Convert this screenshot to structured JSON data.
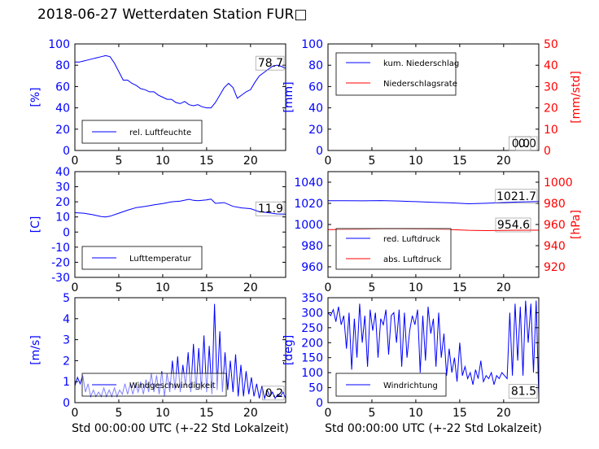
{
  "page": {
    "title": "2018-06-27 Wetterdaten Station FUR□"
  },
  "colors": {
    "left_axis": "#0000ff",
    "right_axis": "#ff0000",
    "series_blue": "#0000ff",
    "series_red": "#ff0000",
    "frame": "#000000",
    "legend_border": "#000000"
  },
  "chart_data": [
    {
      "id": "humidity",
      "type": "line",
      "xlabel": "",
      "ylabel": "[%]",
      "xlim": [
        0,
        24
      ],
      "xticks": [
        0,
        5,
        10,
        15,
        20
      ],
      "ylim": [
        0,
        100
      ],
      "yticks": [
        0,
        20,
        40,
        60,
        80,
        100
      ],
      "legend": "bottom-left",
      "grid": false,
      "series": [
        {
          "name": "rel. Luftfeuchte",
          "axis": "left",
          "color": "#0000ff",
          "x": [
            0,
            0.5,
            1,
            1.5,
            2,
            2.5,
            3,
            3.5,
            4,
            4.5,
            5,
            5.5,
            6,
            6.5,
            7,
            7.5,
            8,
            8.5,
            9,
            9.5,
            10,
            10.5,
            11,
            11.5,
            12,
            12.5,
            13,
            13.5,
            14,
            14.5,
            15,
            15.5,
            16,
            16.5,
            17,
            17.5,
            18,
            18.5,
            19,
            19.5,
            20,
            20.5,
            21,
            21.5,
            22,
            22.5,
            23,
            23.5,
            24
          ],
          "values": [
            83,
            83,
            84,
            85,
            86,
            87,
            88,
            89,
            88,
            82,
            74,
            66,
            66,
            63,
            61,
            58,
            57,
            55,
            55,
            52,
            50,
            48,
            48,
            45,
            44,
            46,
            43,
            42,
            43,
            41,
            40,
            40,
            45,
            52,
            59,
            63,
            59,
            49,
            52,
            55,
            57,
            64,
            70,
            73,
            76,
            79,
            80,
            79,
            77
          ]
        }
      ],
      "annotation": "78.7"
    },
    {
      "id": "precipitation",
      "type": "line",
      "xlabel": "",
      "ylabel": "[mm]",
      "ylabel_right": "[mm/std]",
      "xlim": [
        0,
        24
      ],
      "xticks": [
        0,
        5,
        10,
        15,
        20
      ],
      "ylim": [
        0,
        100
      ],
      "yticks": [
        0,
        20,
        40,
        60,
        80,
        100
      ],
      "ylim_right": [
        0,
        50
      ],
      "yticks_right": [
        0,
        10,
        20,
        30,
        40,
        50
      ],
      "legend": "top-left",
      "grid": false,
      "series": [
        {
          "name": "kum. Niederschlag",
          "axis": "left",
          "color": "#0000ff",
          "x": [
            0,
            24
          ],
          "values": [
            0,
            0
          ]
        },
        {
          "name": "Niederschlagsrate",
          "axis": "right",
          "color": "#ff0000",
          "x": [
            0,
            24
          ],
          "values": [
            0,
            0
          ]
        }
      ],
      "annotation": "0.0",
      "annotation_right": "0.0"
    },
    {
      "id": "temperature",
      "type": "line",
      "xlabel": "",
      "ylabel": "[C]",
      "xlim": [
        0,
        24
      ],
      "xticks": [
        0,
        5,
        10,
        15,
        20
      ],
      "ylim": [
        -30,
        40
      ],
      "yticks": [
        -30,
        -20,
        -10,
        0,
        10,
        20,
        30,
        40
      ],
      "legend": "bottom-left",
      "grid": false,
      "series": [
        {
          "name": "Lufttemperatur",
          "axis": "left",
          "color": "#0000ff",
          "x": [
            0,
            1,
            2,
            3,
            3.5,
            4,
            5,
            6,
            7,
            8,
            9,
            10,
            11,
            12,
            13,
            13.5,
            14,
            15,
            15.5,
            16,
            17,
            18,
            19,
            20,
            21,
            22,
            23,
            24
          ],
          "values": [
            12.8,
            12.5,
            11.5,
            10.3,
            10.0,
            10.5,
            12.5,
            14.5,
            16.2,
            17.0,
            18.0,
            18.9,
            20.0,
            20.5,
            21.7,
            21.0,
            20.8,
            21.3,
            21.8,
            19.0,
            19.5,
            17.0,
            16.0,
            15.5,
            13.5,
            12.8,
            12.0,
            11.9
          ]
        }
      ],
      "annotation": "11.9"
    },
    {
      "id": "pressure",
      "type": "line",
      "xlabel": "",
      "ylabel": "",
      "ylabel_right": "[hPa]",
      "xlim": [
        0,
        24
      ],
      "xticks": [
        0,
        5,
        10,
        15,
        20
      ],
      "ylim": [
        950,
        1050
      ],
      "yticks": [
        960,
        980,
        1000,
        1020,
        1040
      ],
      "ylim_right": [
        910,
        1010
      ],
      "yticks_right": [
        920,
        940,
        960,
        980,
        1000
      ],
      "legend": "bottom-left",
      "grid": false,
      "series": [
        {
          "name": "red. Luftdruck",
          "axis": "left",
          "color": "#0000ff",
          "x": [
            0,
            2,
            4,
            6,
            8,
            10,
            12,
            14,
            16,
            18,
            20,
            22,
            24
          ],
          "values": [
            1022.5,
            1022.5,
            1022.4,
            1022.6,
            1022.2,
            1021.6,
            1021.0,
            1020.5,
            1019.6,
            1020.1,
            1020.8,
            1021.4,
            1021.7
          ]
        },
        {
          "name": "abs. Luftdruck",
          "axis": "right",
          "color": "#ff0000",
          "x": [
            0,
            2,
            4,
            6,
            8,
            10,
            12,
            14,
            16,
            18,
            20,
            22,
            24
          ],
          "values": [
            955.2,
            955.3,
            955.5,
            955.9,
            956.0,
            955.8,
            955.6,
            955.2,
            954.5,
            954.2,
            954.4,
            954.6,
            954.6
          ]
        }
      ],
      "annotation": "1021.7",
      "annotation_right": "954.6"
    },
    {
      "id": "wind-speed",
      "type": "line",
      "xlabel": "Std 00:00:00 UTC (+-22 Std Lokalzeit)",
      "ylabel": "[m/s]",
      "xlim": [
        0,
        24
      ],
      "xticks": [
        0,
        5,
        10,
        15,
        20
      ],
      "ylim": [
        0,
        5
      ],
      "yticks": [
        0,
        1,
        2,
        3,
        4,
        5
      ],
      "legend": "bottom-left",
      "grid": false,
      "series": [
        {
          "name": "Windgeschwindigkeit",
          "axis": "left",
          "color": "#0000ff",
          "x": [
            0,
            0.3,
            0.6,
            0.9,
            1.2,
            1.5,
            1.8,
            2.1,
            2.4,
            2.7,
            3.0,
            3.3,
            3.6,
            3.9,
            4.2,
            4.5,
            4.8,
            5.1,
            5.4,
            5.7,
            6.0,
            6.3,
            6.6,
            6.9,
            7.2,
            7.5,
            7.8,
            8.1,
            8.4,
            8.7,
            9.0,
            9.3,
            9.6,
            9.9,
            10.2,
            10.5,
            10.8,
            11.1,
            11.4,
            11.7,
            12.0,
            12.3,
            12.6,
            12.9,
            13.2,
            13.5,
            13.8,
            14.1,
            14.4,
            14.7,
            15.0,
            15.3,
            15.6,
            15.9,
            16.2,
            16.5,
            16.8,
            17.1,
            17.4,
            17.7,
            18.0,
            18.3,
            18.6,
            18.9,
            19.2,
            19.5,
            19.8,
            20.1,
            20.4,
            20.7,
            21.0,
            21.3,
            21.6,
            21.9,
            22.2,
            22.5,
            22.8,
            23.1,
            23.4,
            23.7,
            24.0
          ],
          "values": [
            0.8,
            1.2,
            0.9,
            1.3,
            0.5,
            0.9,
            0.3,
            0.6,
            0.3,
            0.5,
            0.3,
            0.7,
            0.3,
            0.6,
            0.3,
            0.7,
            0.3,
            0.6,
            0.4,
            0.9,
            0.4,
            0.9,
            0.4,
            0.9,
            0.5,
            1.0,
            0.4,
            1.1,
            0.5,
            1.4,
            0.5,
            1.3,
            0.4,
            1.5,
            0.3,
            1.4,
            0.5,
            2.0,
            0.6,
            2.2,
            0.5,
            1.8,
            0.8,
            2.4,
            0.5,
            2.8,
            0.6,
            2.6,
            0.6,
            3.2,
            0.5,
            2.7,
            0.4,
            4.7,
            0.6,
            3.4,
            0.5,
            2.4,
            0.6,
            2.0,
            0.5,
            2.3,
            0.3,
            1.8,
            0.3,
            1.5,
            0.4,
            1.2,
            0.3,
            0.9,
            0.2,
            0.8,
            0.2,
            0.6,
            0.3,
            0.5,
            0.2,
            0.4,
            0.3,
            0.5,
            0.2
          ]
        }
      ],
      "annotation": "0.2"
    },
    {
      "id": "wind-direction",
      "type": "line",
      "xlabel": "Std 00:00:00 UTC (+-22 Std Lokalzeit)",
      "ylabel": "[deg]",
      "xlim": [
        0,
        24
      ],
      "xticks": [
        0,
        5,
        10,
        15,
        20
      ],
      "ylim": [
        0,
        350
      ],
      "yticks": [
        0,
        50,
        100,
        150,
        200,
        250,
        300,
        350
      ],
      "legend": "bottom-left",
      "grid": false,
      "series": [
        {
          "name": "Windrichtung",
          "axis": "left",
          "color": "#0000ff",
          "x": [
            0,
            0.3,
            0.6,
            0.9,
            1.2,
            1.5,
            1.8,
            2.1,
            2.4,
            2.7,
            3.0,
            3.3,
            3.6,
            3.9,
            4.2,
            4.5,
            4.8,
            5.1,
            5.4,
            5.7,
            6.0,
            6.3,
            6.6,
            6.9,
            7.2,
            7.5,
            7.8,
            8.1,
            8.4,
            8.7,
            9.0,
            9.3,
            9.6,
            9.9,
            10.2,
            10.5,
            10.8,
            11.1,
            11.4,
            11.7,
            12.0,
            12.3,
            12.6,
            12.9,
            13.2,
            13.5,
            13.8,
            14.1,
            14.4,
            14.7,
            15.0,
            15.3,
            15.6,
            15.9,
            16.2,
            16.5,
            16.8,
            17.1,
            17.4,
            17.7,
            18.0,
            18.3,
            18.6,
            18.9,
            19.2,
            19.5,
            19.8,
            20.1,
            20.4,
            20.7,
            21.0,
            21.3,
            21.6,
            21.9,
            22.2,
            22.5,
            22.8,
            23.1,
            23.4,
            23.7,
            24.0
          ],
          "values": [
            300,
            290,
            310,
            270,
            320,
            260,
            290,
            180,
            300,
            110,
            280,
            150,
            330,
            200,
            290,
            120,
            310,
            240,
            300,
            150,
            280,
            260,
            310,
            160,
            290,
            300,
            200,
            310,
            120,
            300,
            150,
            240,
            290,
            260,
            310,
            100,
            290,
            140,
            320,
            230,
            280,
            120,
            300,
            150,
            230,
            90,
            180,
            100,
            150,
            70,
            200,
            90,
            120,
            80,
            100,
            60,
            110,
            80,
            140,
            70,
            90,
            80,
            100,
            60,
            90,
            80,
            100,
            90,
            80,
            300,
            90,
            330,
            140,
            320,
            90,
            340,
            200,
            330,
            100,
            340,
            20
          ]
        }
      ],
      "annotation": "81.5"
    }
  ]
}
